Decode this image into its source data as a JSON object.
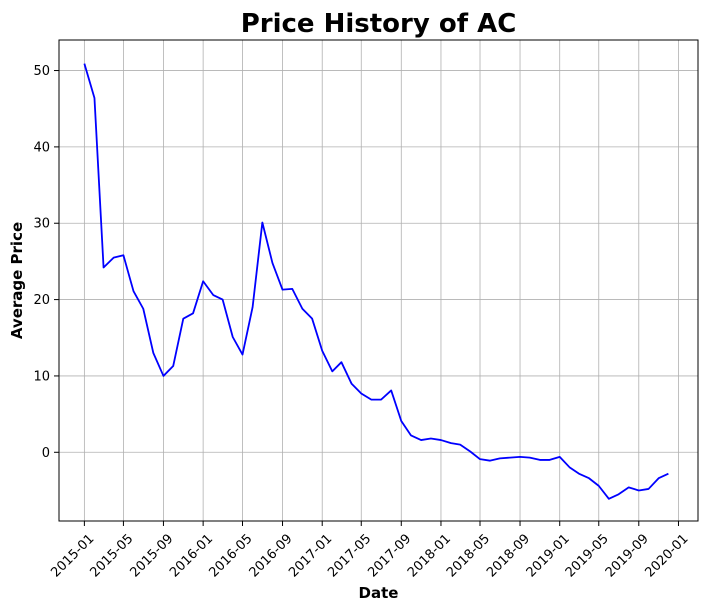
{
  "chart_data": {
    "type": "line",
    "title": "Price History of AC",
    "xlabel": "Date",
    "ylabel": "Average Price",
    "grid": true,
    "x_tick_labels": [
      "2015-01",
      "2015-05",
      "2015-09",
      "2016-01",
      "2016-05",
      "2016-09",
      "2017-01",
      "2017-05",
      "2017-09",
      "2018-01",
      "2018-05",
      "2018-09",
      "2019-01",
      "2019-05",
      "2019-09",
      "2020-01"
    ],
    "y_ticks": [
      0,
      10,
      20,
      30,
      40,
      50
    ],
    "ylim": [
      -9,
      54
    ],
    "xlim": [
      "2014-10-15",
      "2020-03-01"
    ],
    "series": [
      {
        "color": "#0000ff",
        "x": [
          "2015-01",
          "2015-02",
          "2015-03",
          "2015-04",
          "2015-05",
          "2015-06",
          "2015-07",
          "2015-08",
          "2015-09",
          "2015-10",
          "2015-11",
          "2015-12",
          "2016-01",
          "2016-02",
          "2016-03",
          "2016-04",
          "2016-05",
          "2016-06",
          "2016-07",
          "2016-08",
          "2016-09",
          "2016-10",
          "2016-11",
          "2016-12",
          "2017-01",
          "2017-02",
          "2017-03",
          "2017-04",
          "2017-05",
          "2017-06",
          "2017-07",
          "2017-08",
          "2017-09",
          "2017-10",
          "2017-11",
          "2017-12",
          "2018-01",
          "2018-02",
          "2018-03",
          "2018-04",
          "2018-05",
          "2018-06",
          "2018-07",
          "2018-08",
          "2018-09",
          "2018-10",
          "2018-11",
          "2018-12",
          "2019-01",
          "2019-02",
          "2019-03",
          "2019-04",
          "2019-05",
          "2019-06",
          "2019-07",
          "2019-08",
          "2019-09",
          "2019-10",
          "2019-11",
          "2019-12"
        ],
        "values": [
          50.9,
          46.4,
          24.2,
          25.5,
          25.8,
          21.1,
          18.8,
          13.0,
          10.0,
          11.3,
          17.5,
          18.2,
          22.4,
          20.6,
          20.0,
          15.1,
          12.8,
          19.0,
          30.1,
          24.8,
          21.3,
          21.4,
          18.8,
          17.5,
          13.3,
          10.6,
          11.8,
          9.0,
          7.7,
          6.9,
          6.9,
          8.1,
          4.1,
          2.2,
          1.6,
          1.8,
          1.6,
          1.2,
          1.0,
          0.1,
          -0.9,
          -1.1,
          -0.8,
          -0.7,
          -0.6,
          -0.7,
          -1.0,
          -1.0,
          -0.6,
          -2.0,
          -2.8,
          -3.4,
          -4.4,
          -6.1,
          -5.5,
          -4.6,
          -5.0,
          -4.8,
          -3.4,
          -2.8
        ]
      }
    ]
  }
}
